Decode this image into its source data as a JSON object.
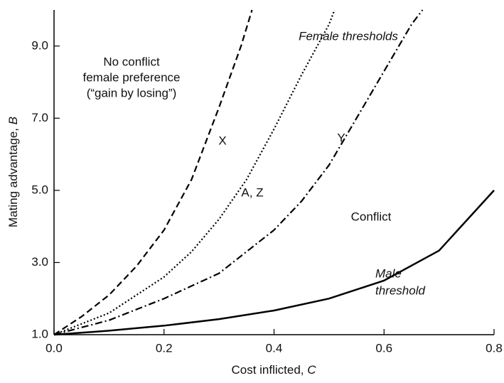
{
  "chart_data": {
    "type": "line",
    "xlabel": "Cost inflicted, ",
    "xlabel_var": "C",
    "ylabel": "Mating advantage, ",
    "ylabel_var": "B",
    "xlim": [
      0,
      0.8
    ],
    "xticks": [
      {
        "value": 0,
        "label": "0.0"
      },
      0.2,
      0.4,
      0.6,
      0.8
    ],
    "ylim": [
      1,
      10
    ],
    "yticks": [
      {
        "value": 1,
        "label": "1.0"
      },
      {
        "value": 3,
        "label": "3.0"
      },
      {
        "value": 5,
        "label": "5.0"
      },
      {
        "value": 7,
        "label": "7.0"
      },
      {
        "value": 9,
        "label": "9.0"
      }
    ],
    "series": [
      {
        "color": "#000000",
        "dash": "dashed",
        "x": [
          0,
          0.05,
          0.1,
          0.15,
          0.2,
          0.25,
          0.3,
          0.34,
          0.36
        ],
        "values": [
          1,
          1.5,
          2.1,
          2.9,
          3.9,
          5.3,
          7.3,
          9.0,
          10
        ]
      },
      {
        "color": "#000000",
        "dash": "dotted",
        "x": [
          0,
          0.1,
          0.2,
          0.25,
          0.3,
          0.35,
          0.4,
          0.45,
          0.5,
          0.51
        ],
        "values": [
          1,
          1.6,
          2.6,
          3.3,
          4.2,
          5.3,
          6.7,
          8.2,
          9.6,
          10
        ]
      },
      {
        "color": "#000000",
        "dash": "dashdot",
        "x": [
          0,
          0.1,
          0.2,
          0.3,
          0.4,
          0.45,
          0.5,
          0.55,
          0.6,
          0.65,
          0.67
        ],
        "values": [
          1,
          1.4,
          2.0,
          2.7,
          3.9,
          4.7,
          5.7,
          7.0,
          8.3,
          9.6,
          10
        ]
      },
      {
        "color": "#000000",
        "dash": "solid",
        "x": [
          0,
          0.1,
          0.2,
          0.3,
          0.4,
          0.5,
          0.6,
          0.7,
          0.8
        ],
        "values": [
          1,
          1.11,
          1.25,
          1.43,
          1.67,
          2,
          2.5,
          3.33,
          5
        ]
      }
    ],
    "annotations": {
      "female": "Female thresholds",
      "noconflict": [
        "No conflict",
        "female preference",
        "(“gain by losing”)"
      ],
      "x": "X",
      "az": "A, Z",
      "y": "Y",
      "conflict": "Conflict",
      "male": [
        "Male",
        "threshold"
      ]
    }
  }
}
